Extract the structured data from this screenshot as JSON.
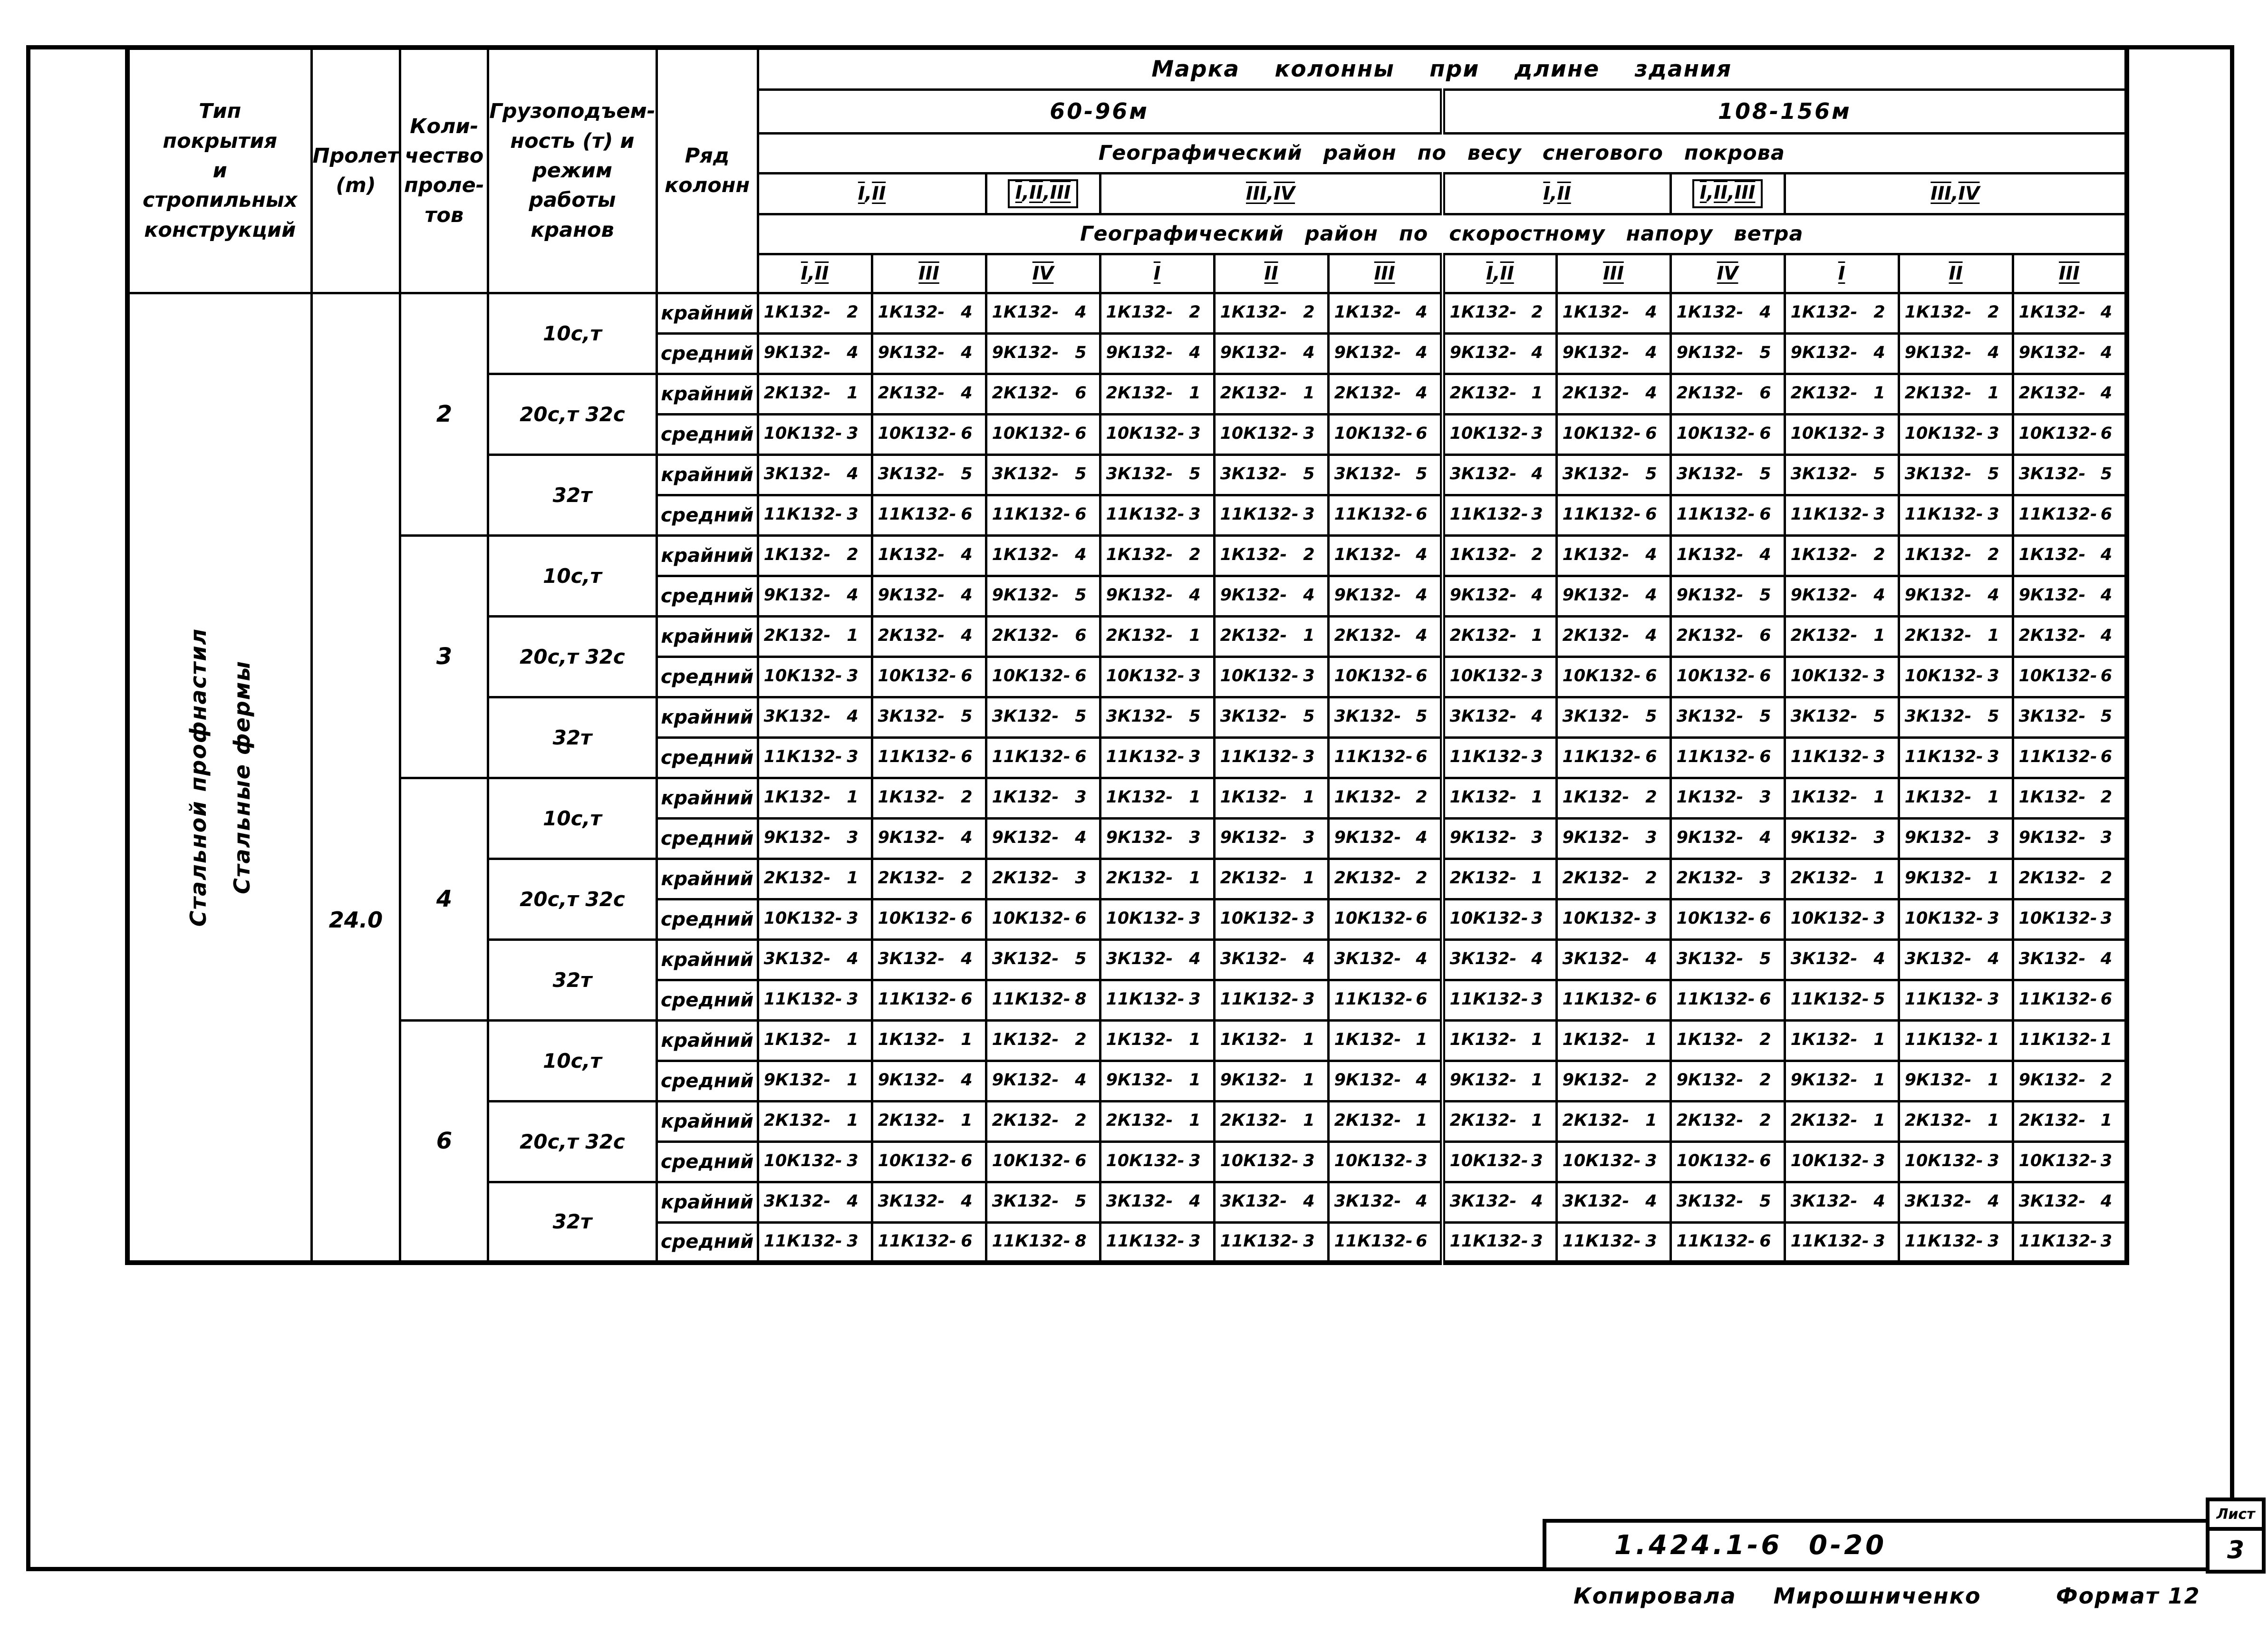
{
  "table": {
    "columns_left": [
      {
        "label": "Тип\nпокрытия\nи\nстропильных\nконструкций"
      },
      {
        "label": "Пролет\n(m)"
      },
      {
        "label": "Коли-\nчество\nпроле-\nтов"
      },
      {
        "label": "Грузоподъем-\nность (т) и\nрежим\nработы\nкранов"
      },
      {
        "label": "Ряд\nколонн"
      }
    ],
    "header": {
      "title": "Марка колонны при длине здания",
      "length_groups": [
        "60-96м",
        "108-156м"
      ],
      "snow_title": "Географический район по весу снегового покрова",
      "snow_groups": [
        {
          "label": "I,II",
          "span": 2,
          "boxed": false
        },
        {
          "label": "I,II,III",
          "span": 1,
          "boxed": true
        },
        {
          "label": "III,IV",
          "span": 3,
          "boxed": false
        },
        {
          "label": "I,II",
          "span": 2,
          "boxed": false
        },
        {
          "label": "I,II,III",
          "span": 1,
          "boxed": true
        },
        {
          "label": "III,IV",
          "span": 3,
          "boxed": false
        }
      ],
      "wind_title": "Географический район по скоростному напору ветра",
      "wind_cols": [
        "I,II",
        "III",
        "IV",
        "I",
        "II",
        "III",
        "I,II",
        "III",
        "IV",
        "I",
        "II",
        "III"
      ]
    },
    "body": {
      "roof_type": "Стальной профнастил\nСтальные фермы",
      "span_value": "24.0",
      "groups": [
        {
          "bays": "2",
          "cranes": [
            {
              "label": "10с,т",
              "rows": [
                {
                  "pos": "крайний",
                  "marks": [
                    "1К132-2",
                    "1К132-4",
                    "1К132-4",
                    "1К132-2",
                    "1К132-2",
                    "1К132-4",
                    "1К132-2",
                    "1К132-4",
                    "1К132-4",
                    "1К132-2",
                    "1К132-2",
                    "1К132-4"
                  ]
                },
                {
                  "pos": "средний",
                  "marks": [
                    "9К132-4",
                    "9К132-4",
                    "9К132-5",
                    "9К132-4",
                    "9К132-4",
                    "9К132-4",
                    "9К132-4",
                    "9К132-4",
                    "9К132-5",
                    "9К132-4",
                    "9К132-4",
                    "9К132-4"
                  ]
                }
              ]
            },
            {
              "label": "20с,т 32с",
              "rows": [
                {
                  "pos": "крайний",
                  "marks": [
                    "2К132-1",
                    "2К132-4",
                    "2К132-6",
                    "2К132-1",
                    "2К132-1",
                    "2К132-4",
                    "2К132-1",
                    "2К132-4",
                    "2К132-6",
                    "2К132-1",
                    "2К132-1",
                    "2К132-4"
                  ]
                },
                {
                  "pos": "средний",
                  "marks": [
                    "10К132-3",
                    "10К132-6",
                    "10К132-6",
                    "10К132-3",
                    "10К132-3",
                    "10К132-6",
                    "10К132-3",
                    "10К132-6",
                    "10К132-6",
                    "10К132-3",
                    "10К132-3",
                    "10К132-6"
                  ]
                }
              ]
            },
            {
              "label": "32т",
              "rows": [
                {
                  "pos": "крайний",
                  "marks": [
                    "3К132-4",
                    "3К132-5",
                    "3К132-5",
                    "3К132-5",
                    "3К132-5",
                    "3К132-5",
                    "3К132-4",
                    "3К132-5",
                    "3К132-5",
                    "3К132-5",
                    "3К132-5",
                    "3К132-5"
                  ]
                },
                {
                  "pos": "средний",
                  "marks": [
                    "11К132-3",
                    "11К132-6",
                    "11К132-6",
                    "11К132-3",
                    "11К132-3",
                    "11К132-6",
                    "11К132-3",
                    "11К132-6",
                    "11К132-6",
                    "11К132-3",
                    "11К132-3",
                    "11К132-6"
                  ]
                }
              ]
            }
          ]
        },
        {
          "bays": "3",
          "cranes": [
            {
              "label": "10с,т",
              "rows": [
                {
                  "pos": "крайний",
                  "marks": [
                    "1К132-2",
                    "1К132-4",
                    "1К132-4",
                    "1К132-2",
                    "1К132-2",
                    "1К132-4",
                    "1К132-2",
                    "1К132-4",
                    "1К132-4",
                    "1К132-2",
                    "1К132-2",
                    "1К132-4"
                  ]
                },
                {
                  "pos": "средний",
                  "marks": [
                    "9К132-4",
                    "9К132-4",
                    "9К132-5",
                    "9К132-4",
                    "9К132-4",
                    "9К132-4",
                    "9К132-4",
                    "9К132-4",
                    "9К132-5",
                    "9К132-4",
                    "9К132-4",
                    "9К132-4"
                  ]
                }
              ]
            },
            {
              "label": "20с,т 32с",
              "rows": [
                {
                  "pos": "крайний",
                  "marks": [
                    "2К132-1",
                    "2К132-4",
                    "2К132-6",
                    "2К132-1",
                    "2К132-1",
                    "2К132-4",
                    "2К132-1",
                    "2К132-4",
                    "2К132-6",
                    "2К132-1",
                    "2К132-1",
                    "2К132-4"
                  ]
                },
                {
                  "pos": "средний",
                  "marks": [
                    "10К132-3",
                    "10К132-6",
                    "10К132-6",
                    "10К132-3",
                    "10К132-3",
                    "10К132-6",
                    "10К132-3",
                    "10К132-6",
                    "10К132-6",
                    "10К132-3",
                    "10К132-3",
                    "10К132-6"
                  ]
                }
              ]
            },
            {
              "label": "32т",
              "rows": [
                {
                  "pos": "крайний",
                  "marks": [
                    "3К132-4",
                    "3К132-5",
                    "3К132-5",
                    "3К132-5",
                    "3К132-5",
                    "3К132-5",
                    "3К132-4",
                    "3К132-5",
                    "3К132-5",
                    "3К132-5",
                    "3К132-5",
                    "3К132-5"
                  ]
                },
                {
                  "pos": "средний",
                  "marks": [
                    "11К132-3",
                    "11К132-6",
                    "11К132-6",
                    "11К132-3",
                    "11К132-3",
                    "11К132-6",
                    "11К132-3",
                    "11К132-6",
                    "11К132-6",
                    "11К132-3",
                    "11К132-3",
                    "11К132-6"
                  ]
                }
              ]
            }
          ]
        },
        {
          "bays": "4",
          "cranes": [
            {
              "label": "10с,т",
              "rows": [
                {
                  "pos": "крайний",
                  "marks": [
                    "1К132-1",
                    "1К132-2",
                    "1К132-3",
                    "1К132-1",
                    "1К132-1",
                    "1К132-2",
                    "1К132-1",
                    "1К132-2",
                    "1К132-3",
                    "1К132-1",
                    "1К132-1",
                    "1К132-2"
                  ]
                },
                {
                  "pos": "средний",
                  "marks": [
                    "9К132-3",
                    "9К132-4",
                    "9К132-4",
                    "9К132-3",
                    "9К132-3",
                    "9К132-4",
                    "9К132-3",
                    "9К132-3",
                    "9К132-4",
                    "9К132-3",
                    "9К132-3",
                    "9К132-3"
                  ]
                }
              ]
            },
            {
              "label": "20с,т 32с",
              "rows": [
                {
                  "pos": "крайний",
                  "marks": [
                    "2К132-1",
                    "2К132-2",
                    "2К132-3",
                    "2К132-1",
                    "2К132-1",
                    "2К132-2",
                    "2К132-1",
                    "2К132-2",
                    "2К132-3",
                    "2К132-1",
                    "9К132-1",
                    "2К132-2"
                  ]
                },
                {
                  "pos": "средний",
                  "marks": [
                    "10К132-3",
                    "10К132-6",
                    "10К132-6",
                    "10К132-3",
                    "10К132-3",
                    "10К132-6",
                    "10К132-3",
                    "10К132-3",
                    "10К132-6",
                    "10К132-3",
                    "10К132-3",
                    "10К132-3"
                  ]
                }
              ]
            },
            {
              "label": "32т",
              "rows": [
                {
                  "pos": "крайний",
                  "marks": [
                    "3К132-4",
                    "3К132-4",
                    "3К132-5",
                    "3К132-4",
                    "3К132-4",
                    "3К132-4",
                    "3К132-4",
                    "3К132-4",
                    "3К132-5",
                    "3К132-4",
                    "3К132-4",
                    "3К132-4"
                  ]
                },
                {
                  "pos": "средний",
                  "marks": [
                    "11К132-3",
                    "11К132-6",
                    "11К132-8",
                    "11К132-3",
                    "11К132-3",
                    "11К132-6",
                    "11К132-3",
                    "11К132-6",
                    "11К132-6",
                    "11К132-5",
                    "11К132-3",
                    "11К132-6"
                  ]
                }
              ]
            }
          ]
        },
        {
          "bays": "6",
          "cranes": [
            {
              "label": "10с,т",
              "rows": [
                {
                  "pos": "крайний",
                  "marks": [
                    "1К132-1",
                    "1К132-1",
                    "1К132-2",
                    "1К132-1",
                    "1К132-1",
                    "1К132-1",
                    "1К132-1",
                    "1К132-1",
                    "1К132-2",
                    "1К132-1",
                    "11К132-1",
                    "11К132-1"
                  ]
                },
                {
                  "pos": "средний",
                  "marks": [
                    "9К132-1",
                    "9К132-4",
                    "9К132-4",
                    "9К132-1",
                    "9К132-1",
                    "9К132-4",
                    "9К132-1",
                    "9К132-2",
                    "9К132-2",
                    "9К132-1",
                    "9К132-1",
                    "9К132-2"
                  ]
                }
              ]
            },
            {
              "label": "20с,т 32с",
              "rows": [
                {
                  "pos": "крайний",
                  "marks": [
                    "2К132-1",
                    "2К132-1",
                    "2К132-2",
                    "2К132-1",
                    "2К132-1",
                    "2К132-1",
                    "2К132-1",
                    "2К132-1",
                    "2К132-2",
                    "2К132-1",
                    "2К132-1",
                    "2К132-1"
                  ]
                },
                {
                  "pos": "средний",
                  "marks": [
                    "10К132-3",
                    "10К132-6",
                    "10К132-6",
                    "10К132-3",
                    "10К132-3",
                    "10К132-3",
                    "10К132-3",
                    "10К132-3",
                    "10К132-6",
                    "10К132-3",
                    "10К132-3",
                    "10К132-3"
                  ]
                }
              ]
            },
            {
              "label": "32т",
              "rows": [
                {
                  "pos": "крайний",
                  "marks": [
                    "3К132-4",
                    "3К132-4",
                    "3К132-5",
                    "3К132-4",
                    "3К132-4",
                    "3К132-4",
                    "3К132-4",
                    "3К132-4",
                    "3К132-5",
                    "3К132-4",
                    "3К132-4",
                    "3К132-4"
                  ]
                },
                {
                  "pos": "средний",
                  "marks": [
                    "11К132-3",
                    "11К132-6",
                    "11К132-8",
                    "11К132-3",
                    "11К132-3",
                    "11К132-6",
                    "11К132-3",
                    "11К132-3",
                    "11К132-6",
                    "11К132-3",
                    "11К132-3",
                    "11К132-3"
                  ]
                }
              ]
            }
          ]
        }
      ]
    }
  },
  "footer": {
    "stamp_series": "1.424.1-6 0-20",
    "sheet_label": "Лист",
    "sheet_number": "3",
    "copied_label": "Копировала",
    "copied_by": "Мирошниченко",
    "format_label": "Формат 12"
  }
}
